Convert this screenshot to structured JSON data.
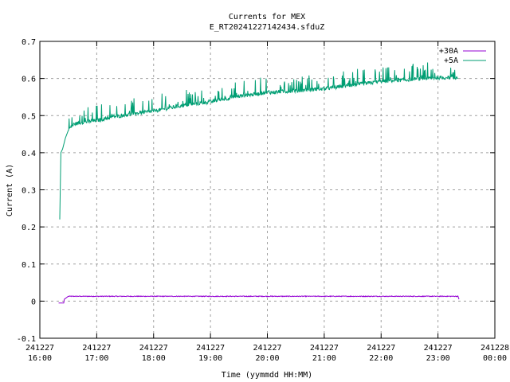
{
  "chart_data": {
    "type": "line",
    "title": "Currents for MEX",
    "subtitle": "E_RT20241227142434.sfduZ",
    "xlabel": "Time (yymmdd HH:MM)",
    "ylabel": "Current (A)",
    "ylim": [
      -0.1,
      0.7
    ],
    "xlim_hours": [
      16.0,
      24.0
    ],
    "grid": true,
    "legend_position": "top-right",
    "y_ticks": [
      "-0.1",
      "0",
      "0.1",
      "0.2",
      "0.3",
      "0.4",
      "0.5",
      "0.6",
      "0.7"
    ],
    "x_ticks": [
      {
        "date": "241227",
        "time": "16:00"
      },
      {
        "date": "241227",
        "time": "17:00"
      },
      {
        "date": "241227",
        "time": "18:00"
      },
      {
        "date": "241227",
        "time": "19:00"
      },
      {
        "date": "241227",
        "time": "20:00"
      },
      {
        "date": "241227",
        "time": "21:00"
      },
      {
        "date": "241227",
        "time": "22:00"
      },
      {
        "date": "241227",
        "time": "23:00"
      },
      {
        "date": "241228",
        "time": "00:00"
      }
    ],
    "series": [
      {
        "name": "+30A",
        "color": "#9400d3",
        "x_hours": [
          16.33,
          16.42,
          16.43,
          16.5,
          17.0,
          18.0,
          19.0,
          20.0,
          21.0,
          22.0,
          23.0,
          23.35,
          23.37
        ],
        "values": [
          -0.005,
          -0.005,
          0.005,
          0.013,
          0.013,
          0.013,
          0.013,
          0.013,
          0.013,
          0.013,
          0.013,
          0.013,
          0.005
        ]
      },
      {
        "name": "+5A",
        "color": "#009e73",
        "x_hours": [
          16.35,
          16.37,
          16.4,
          16.45,
          16.5,
          16.6,
          16.75,
          17.0,
          17.5,
          18.0,
          18.5,
          19.0,
          19.5,
          20.0,
          20.5,
          21.0,
          21.5,
          22.0,
          22.5,
          23.0,
          23.35
        ],
        "values": [
          0.22,
          0.4,
          0.41,
          0.44,
          0.46,
          0.475,
          0.48,
          0.485,
          0.5,
          0.51,
          0.525,
          0.535,
          0.55,
          0.56,
          0.565,
          0.57,
          0.58,
          0.59,
          0.595,
          0.6,
          0.6
        ]
      }
    ]
  }
}
